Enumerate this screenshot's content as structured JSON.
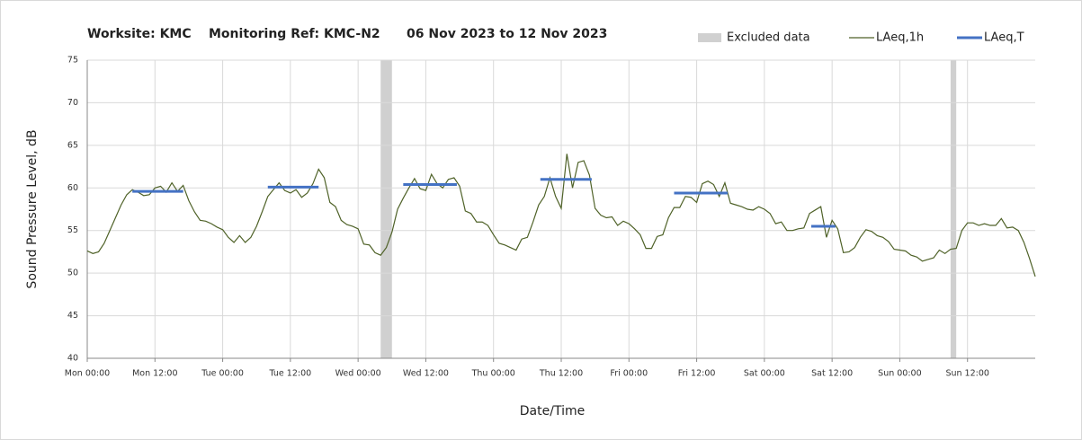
{
  "chart_data": {
    "type": "line",
    "title_site": "Worksite: KMC",
    "title_ref": "Monitoring Ref: KMC-N2",
    "title_period": "06 Nov 2023 to 12 Nov 2023",
    "xlabel": "Date/Time",
    "ylabel": "Sound Pressure Level, dB",
    "xlim": [
      0,
      168
    ],
    "ylim": [
      40,
      75
    ],
    "yticks": [
      40,
      45,
      50,
      55,
      60,
      65,
      70,
      75
    ],
    "xticks": [
      {
        "value": 0,
        "label": "Mon 00:00"
      },
      {
        "value": 12,
        "label": "Mon 12:00"
      },
      {
        "value": 24,
        "label": "Tue 00:00"
      },
      {
        "value": 36,
        "label": "Tue 12:00"
      },
      {
        "value": 48,
        "label": "Wed 00:00"
      },
      {
        "value": 60,
        "label": "Wed 12:00"
      },
      {
        "value": 72,
        "label": "Thu 00:00"
      },
      {
        "value": 84,
        "label": "Thu 12:00"
      },
      {
        "value": 96,
        "label": "Fri 00:00"
      },
      {
        "value": 108,
        "label": "Fri 12:00"
      },
      {
        "value": 120,
        "label": "Sat 00:00"
      },
      {
        "value": 132,
        "label": "Sat 12:00"
      },
      {
        "value": 144,
        "label": "Sun 00:00"
      },
      {
        "value": 156,
        "label": "Sun 12:00"
      }
    ],
    "grid": true,
    "legend": "top-right",
    "excluded": {
      "name": "Excluded data",
      "color": "#d0d0d0",
      "ranges": [
        [
          52,
          54
        ],
        [
          153,
          154
        ]
      ]
    },
    "x": [
      0,
      1,
      2,
      3,
      4,
      5,
      6,
      7,
      8,
      9,
      10,
      11,
      12,
      13,
      14,
      15,
      16,
      17,
      18,
      19,
      20,
      21,
      22,
      23,
      24,
      25,
      26,
      27,
      28,
      29,
      30,
      31,
      32,
      33,
      34,
      35,
      36,
      37,
      38,
      39,
      40,
      41,
      42,
      43,
      44,
      45,
      46,
      47,
      48,
      49,
      50,
      51,
      52,
      53,
      54,
      55,
      56,
      57,
      58,
      59,
      60,
      61,
      62,
      63,
      64,
      65,
      66,
      67,
      68,
      69,
      70,
      71,
      72,
      73,
      74,
      75,
      76,
      77,
      78,
      79,
      80,
      81,
      82,
      83,
      84,
      85,
      86,
      87,
      88,
      89,
      90,
      91,
      92,
      93,
      94,
      95,
      96,
      97,
      98,
      99,
      100,
      101,
      102,
      103,
      104,
      105,
      106,
      107,
      108,
      109,
      110,
      111,
      112,
      113,
      114,
      115,
      116,
      117,
      118,
      119,
      120,
      121,
      122,
      123,
      124,
      125,
      126,
      127,
      128,
      129,
      130,
      131,
      132,
      133,
      134,
      135,
      136,
      137,
      138,
      139,
      140,
      141,
      142,
      143,
      144,
      145,
      146,
      147,
      148,
      149,
      150,
      151,
      152,
      153,
      154,
      155,
      156,
      157,
      158,
      159,
      160,
      161,
      162,
      163,
      164,
      165,
      166,
      167,
      168
    ],
    "series": [
      {
        "name": "LAeq,1h",
        "color": "#4f6228",
        "values": [
          52.6,
          52.3,
          52.5,
          53.5,
          55,
          56.5,
          58,
          59.2,
          59.8,
          59.5,
          59.1,
          59.2,
          60,
          60.2,
          59.5,
          60.6,
          59.6,
          60.3,
          58.5,
          57.2,
          56.2,
          56.1,
          55.8,
          55.4,
          55.1,
          54.2,
          53.6,
          54.4,
          53.6,
          54.2,
          55.5,
          57.2,
          59,
          59.8,
          60.6,
          59.7,
          59.4,
          59.8,
          58.9,
          59.4,
          60.5,
          62.2,
          61.2,
          58.3,
          57.8,
          56.2,
          55.7,
          55.5,
          55.2,
          53.4,
          53.3,
          52.4,
          52.1,
          53,
          54.8,
          57.5,
          58.8,
          60,
          61.1,
          59.9,
          59.7,
          61.6,
          60.5,
          60,
          61,
          61.2,
          60.2,
          57.3,
          57,
          56,
          56,
          55.6,
          54.5,
          53.5,
          53.3,
          53,
          52.7,
          54,
          54.2,
          56,
          58,
          59,
          61.2,
          59,
          57.6,
          64,
          60,
          63,
          63.2,
          61.5,
          57.6,
          56.8,
          56.5,
          56.6,
          55.6,
          56.1,
          55.8,
          55.2,
          54.5,
          52.9,
          52.9,
          54.3,
          54.5,
          56.5,
          57.7,
          57.7,
          59,
          58.9,
          58.3,
          60.5,
          60.8,
          60.4,
          59,
          60.6,
          58.2,
          58,
          57.8,
          57.5,
          57.4,
          57.8,
          57.5,
          57,
          55.8,
          56,
          55,
          55,
          55.2,
          55.3,
          57,
          57.4,
          57.8,
          54.2,
          56.2,
          55.2,
          52.4,
          52.5,
          53,
          54.2,
          55.1,
          54.9,
          54.4,
          54.2,
          53.7,
          52.8,
          52.7,
          52.6,
          52.1,
          51.9,
          51.4,
          51.6,
          51.8,
          52.7,
          52.3,
          52.8,
          52.9,
          55,
          55.9,
          55.9,
          55.6,
          55.8,
          55.6,
          55.6,
          56.4,
          55.3,
          55.4,
          55,
          53.6,
          51.7,
          49.6
        ]
      },
      {
        "name": "LAeq,T",
        "color": "#4472c4",
        "segments": [
          {
            "x": [
              8,
              17
            ],
            "value": 59.6
          },
          {
            "x": [
              32,
              41
            ],
            "value": 60.1
          },
          {
            "x": [
              56,
              65.5
            ],
            "value": 60.4
          },
          {
            "x": [
              80.3,
              89.4
            ],
            "value": 61.0
          },
          {
            "x": [
              104,
              113.5
            ],
            "value": 59.4
          },
          {
            "x": [
              128.3,
              132.6
            ],
            "value": 55.5
          }
        ]
      }
    ]
  }
}
